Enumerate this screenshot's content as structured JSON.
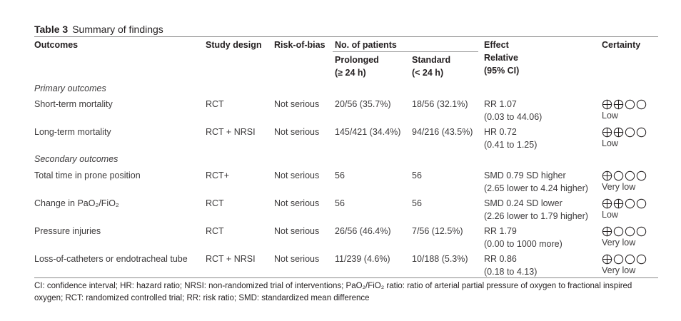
{
  "caption": {
    "label": "Table 3",
    "text": "Summary of findings"
  },
  "headers": {
    "outcomes": "Outcomes",
    "study_design": "Study design",
    "risk_of_bias": "Risk-of-bias",
    "no_patients": "No. of patients",
    "prolonged_1": "Prolonged",
    "prolonged_2": "(≥ 24 h)",
    "standard_1": "Standard",
    "standard_2": "(< 24 h)",
    "effect_1": "Effect",
    "effect_2": "Relative",
    "effect_3": "(95% CI)",
    "certainty": "Certainty"
  },
  "sections": {
    "primary": "Primary outcomes",
    "secondary": "Secondary outcomes"
  },
  "rows": [
    {
      "outcome": "Short-term mortality",
      "design": "RCT",
      "bias": "Not serious",
      "prolonged": "20/56 (35.7%)",
      "standard": "18/56 (32.1%)",
      "effect": "RR 1.07",
      "ci": "(0.03 to 44.06)",
      "certainty_level": 2,
      "certainty": "Low"
    },
    {
      "outcome": "Long-term mortality",
      "design": "RCT + NRSI",
      "bias": "Not serious",
      "prolonged": "145/421 (34.4%)",
      "standard": "94/216 (43.5%)",
      "effect": "HR 0.72",
      "ci": "(0.41 to 1.25)",
      "certainty_level": 2,
      "certainty": "Low"
    },
    {
      "outcome": "Total time in prone position",
      "design": "RCT+",
      "bias": "Not serious",
      "prolonged": "56",
      "standard": "56",
      "effect": "SMD 0.79 SD higher",
      "ci": "(2.65 lower to 4.24 higher)",
      "certainty_level": 1,
      "certainty": "Very low"
    },
    {
      "outcome": "Change in PaO₂/FiO₂",
      "design": "RCT",
      "bias": "Not serious",
      "prolonged": "56",
      "standard": "56",
      "effect": "SMD 0.24 SD lower",
      "ci": "(2.26 lower to 1.79 higher)",
      "certainty_level": 2,
      "certainty": "Low"
    },
    {
      "outcome": "Pressure injuries",
      "design": "RCT",
      "bias": "Not serious",
      "prolonged": "26/56 (46.4%)",
      "standard": "7/56 (12.5%)",
      "effect": "RR 1.79",
      "ci": "(0.00 to 1000 more)",
      "certainty_level": 1,
      "certainty": "Very low"
    },
    {
      "outcome": "Loss-of-catheters or endotracheal tube",
      "design": "RCT + NRSI",
      "bias": "Not serious",
      "prolonged": "11/239 (4.6%)",
      "standard": "10/188 (5.3%)",
      "effect": "RR 0.86",
      "ci": "(0.18 to 4.13)",
      "certainty_level": 1,
      "certainty": "Very low"
    }
  ],
  "footnote": "CI: confidence interval; HR: hazard ratio; NRSI: non-randomized trial of interventions; PaO₂/FiO₂ ratio: ratio of arterial partial pressure of oxygen to fractional inspired oxygen; RCT: randomized controlled trial; RR: risk ratio; SMD: standardized mean difference"
}
